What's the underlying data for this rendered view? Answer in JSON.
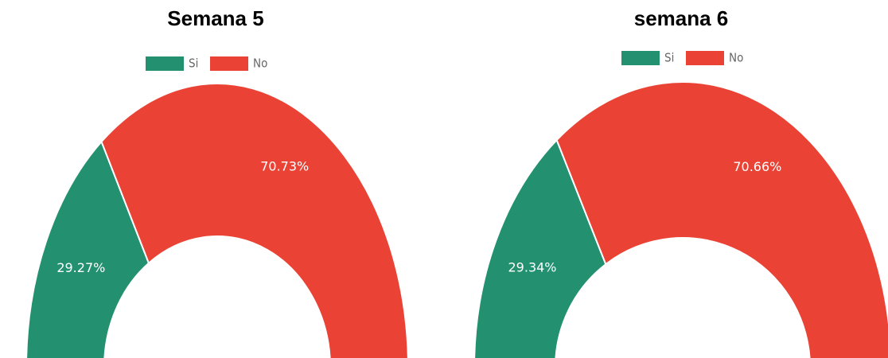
{
  "chart_data": [
    {
      "type": "doughnut",
      "title": "Semana  5",
      "categories": [
        "Si",
        "No"
      ],
      "values": [
        29.27,
        70.73
      ],
      "value_labels": [
        "29.27%",
        "70.73%"
      ],
      "colors": [
        "#239170",
        "#ea4335"
      ]
    },
    {
      "type": "doughnut",
      "title": "semana 6",
      "categories": [
        "Si",
        "No"
      ],
      "values": [
        29.34,
        70.66
      ],
      "value_labels": [
        "29.34%",
        "70.66%"
      ],
      "colors": [
        "#239170",
        "#ea4335"
      ]
    }
  ]
}
